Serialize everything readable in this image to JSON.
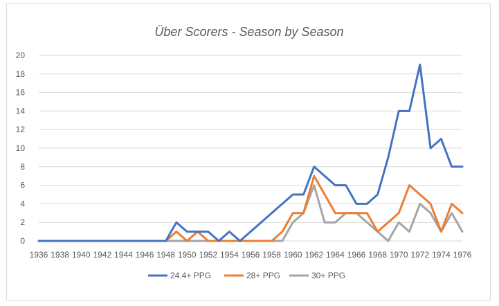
{
  "chart_data": {
    "type": "line",
    "title": "Über Scorers - Season by Season",
    "xlabel": "",
    "ylabel": "",
    "x": [
      1936,
      1937,
      1938,
      1939,
      1940,
      1941,
      1942,
      1943,
      1944,
      1945,
      1946,
      1947,
      1948,
      1949,
      1950,
      1951,
      1952,
      1953,
      1954,
      1955,
      1956,
      1957,
      1958,
      1959,
      1960,
      1961,
      1962,
      1963,
      1964,
      1965,
      1966,
      1967,
      1968,
      1969,
      1970,
      1971,
      1972,
      1973,
      1974,
      1975,
      1976
    ],
    "x_tick_labels": [
      "1936",
      "1938",
      "1940",
      "1942",
      "1944",
      "1946",
      "1948",
      "1950",
      "1952",
      "1954",
      "1956",
      "1958",
      "1960",
      "1962",
      "1964",
      "1966",
      "1968",
      "1970",
      "1972",
      "1974",
      "1976"
    ],
    "ylim": [
      0,
      20
    ],
    "y_ticks": [
      0,
      2,
      4,
      6,
      8,
      10,
      12,
      14,
      16,
      18,
      20
    ],
    "grid": true,
    "legend_position": "bottom",
    "series": [
      {
        "name": "24.4+ PPG",
        "color": "#4472c4",
        "values": [
          0,
          0,
          0,
          0,
          0,
          0,
          0,
          0,
          0,
          0,
          0,
          0,
          0,
          2,
          1,
          1,
          1,
          0,
          1,
          0,
          1,
          2,
          3,
          4,
          5,
          5,
          8,
          7,
          6,
          6,
          4,
          4,
          5,
          9,
          14,
          14,
          19,
          10,
          11,
          8,
          8
        ]
      },
      {
        "name": "28+ PPG",
        "color": "#ed7d31",
        "values": [
          0,
          0,
          0,
          0,
          0,
          0,
          0,
          0,
          0,
          0,
          0,
          0,
          0,
          1,
          0,
          1,
          0,
          0,
          0,
          0,
          0,
          0,
          0,
          1,
          3,
          3,
          7,
          5,
          3,
          3,
          3,
          3,
          1,
          2,
          3,
          6,
          5,
          4,
          1,
          4,
          3
        ]
      },
      {
        "name": "30+ PPG",
        "color": "#a5a5a5",
        "values": [
          0,
          0,
          0,
          0,
          0,
          0,
          0,
          0,
          0,
          0,
          0,
          0,
          0,
          0,
          0,
          0,
          0,
          0,
          0,
          0,
          0,
          0,
          0,
          0,
          2,
          3,
          6,
          2,
          2,
          3,
          3,
          2,
          1,
          0,
          2,
          1,
          4,
          3,
          1,
          3,
          1
        ]
      }
    ]
  }
}
